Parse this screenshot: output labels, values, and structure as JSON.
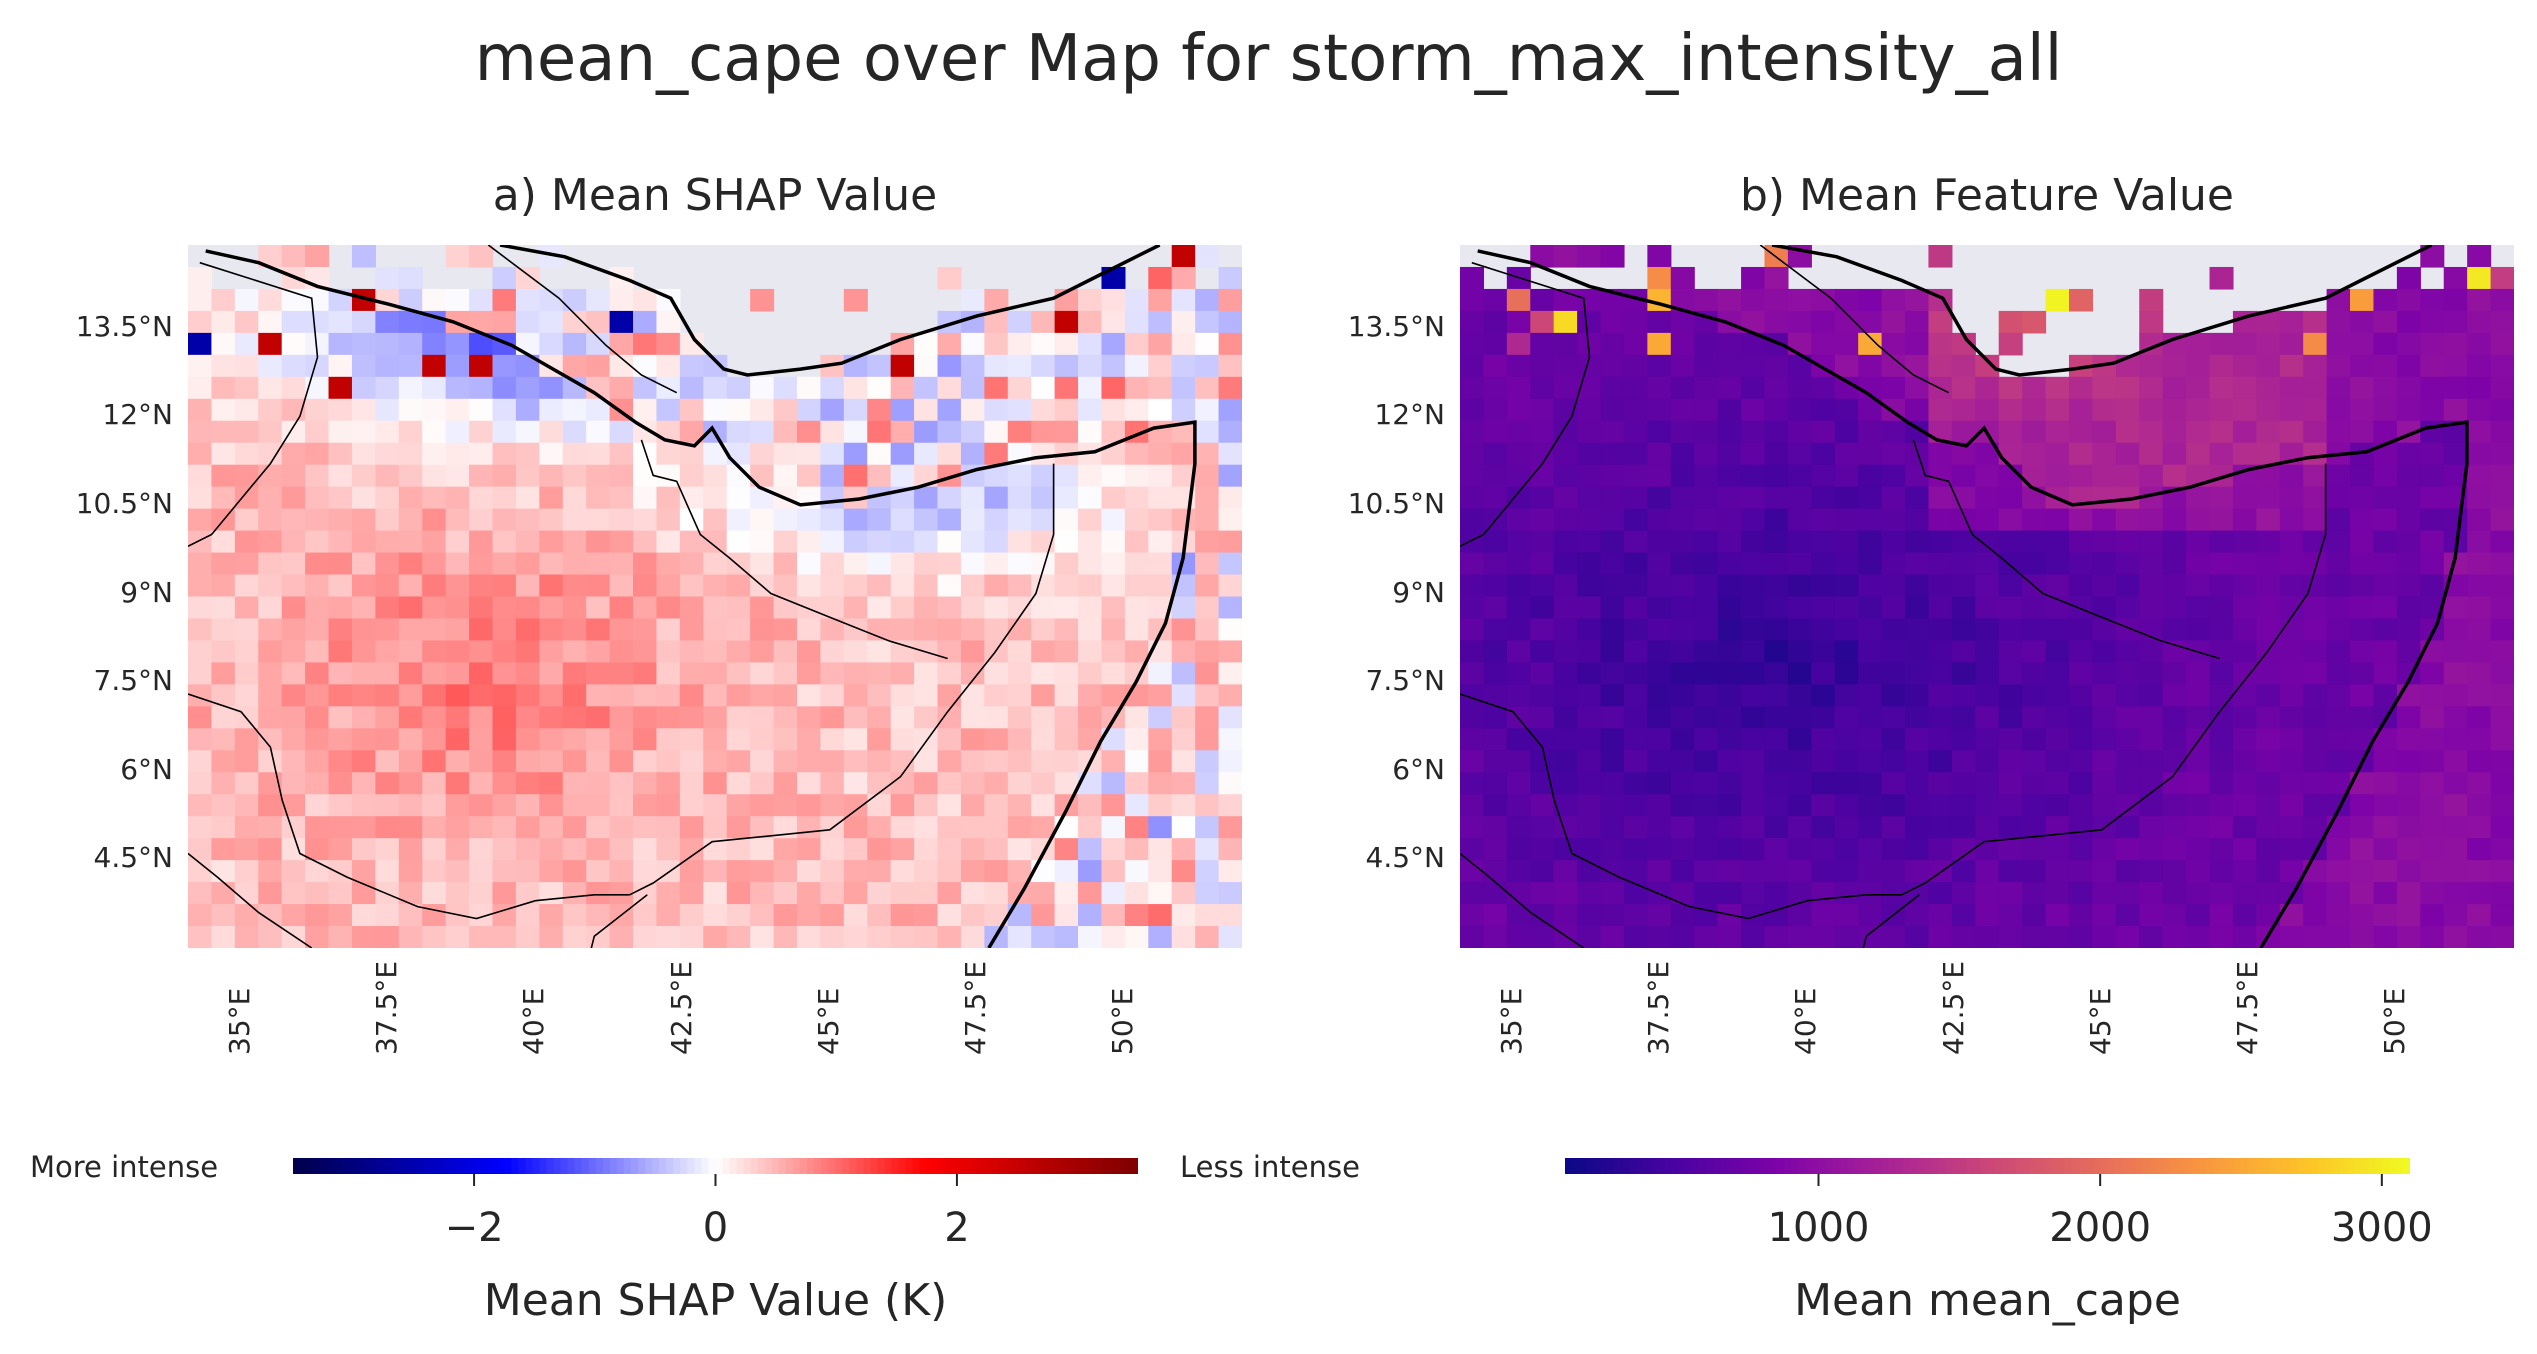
{
  "title": "mean_cape over Map for storm_max_intensity_all",
  "panel_a": {
    "title": "a) Mean SHAP Value",
    "lat_ticks": [
      "13.5°N",
      "12°N",
      "10.5°N",
      "9°N",
      "7.5°N",
      "6°N",
      "4.5°N"
    ],
    "lon_ticks": [
      "35°E",
      "37.5°E",
      "40°E",
      "42.5°E",
      "45°E",
      "47.5°E",
      "50°E"
    ],
    "colorbar": {
      "label": "Mean SHAP Value (K)",
      "ticks": [
        "−2",
        "0",
        "2"
      ],
      "tick_values": [
        -2,
        0,
        2
      ],
      "range": [
        -3.5,
        3.5
      ],
      "left_text": "More intense",
      "right_text": "Less intense",
      "colormap": "seismic"
    }
  },
  "panel_b": {
    "title": "b) Mean Feature Value",
    "lat_ticks": [
      "13.5°N",
      "12°N",
      "10.5°N",
      "9°N",
      "7.5°N",
      "6°N",
      "4.5°N"
    ],
    "lon_ticks": [
      "35°E",
      "37.5°E",
      "40°E",
      "42.5°E",
      "45°E",
      "47.5°E",
      "50°E"
    ],
    "colorbar": {
      "label": "Mean mean_cape",
      "ticks": [
        "1000",
        "2000",
        "3000"
      ],
      "tick_values": [
        1000,
        2000,
        3000
      ],
      "range": [
        100,
        3100
      ],
      "colormap": "plasma"
    }
  },
  "map_extent": {
    "lon": [
      34.1,
      52.0
    ],
    "lat": [
      3.0,
      14.9
    ]
  },
  "colors": {
    "missing": "#e8e8f0",
    "coast": "#000000",
    "border": "#000000"
  }
}
